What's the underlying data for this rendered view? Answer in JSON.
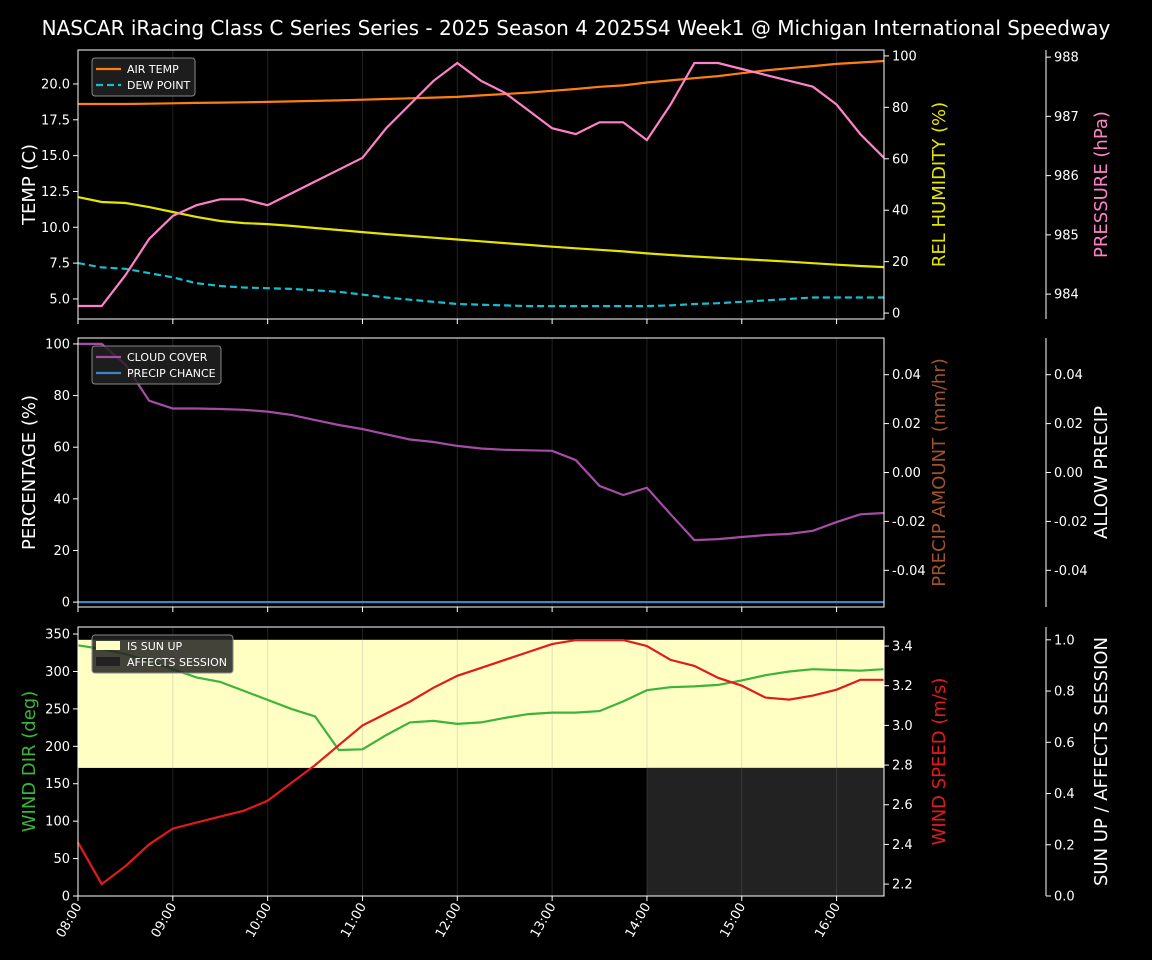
{
  "title": "NASCAR iRacing Class C Series Series - 2025 Season 4 2025S4 Week1 @ Michigan International Speedway",
  "chart_data": [
    {
      "type": "line",
      "panel": "top",
      "x": [
        "08:00",
        "08:15",
        "08:30",
        "08:45",
        "09:00",
        "09:15",
        "09:30",
        "09:45",
        "10:00",
        "10:15",
        "10:30",
        "10:45",
        "11:00",
        "11:15",
        "11:30",
        "11:45",
        "12:00",
        "12:15",
        "12:30",
        "12:45",
        "13:00",
        "13:15",
        "13:30",
        "13:45",
        "14:00",
        "14:15",
        "14:30",
        "14:45",
        "15:00",
        "15:15",
        "15:30",
        "15:45",
        "16:00",
        "16:15",
        "16:30"
      ],
      "xticks": [
        "08:00",
        "09:00",
        "10:00",
        "11:00",
        "12:00",
        "13:00",
        "14:00",
        "15:00",
        "16:00"
      ],
      "ylabel": "TEMP (C)",
      "ylim": [
        3.6,
        22.37
      ],
      "yticks": [
        "5.0",
        "7.5",
        "10.0",
        "12.5",
        "15.0",
        "17.5",
        "20.0"
      ],
      "y2label": "REL HUMIDITY (%)",
      "y2lim": [
        -2.3,
        102.3
      ],
      "y2ticks": [
        "0",
        "20",
        "40",
        "60",
        "80",
        "100"
      ],
      "y3label": "PRESSURE (hPa)",
      "y3lim": [
        983.58,
        988.12
      ],
      "y3ticks": [
        "984",
        "985",
        "986",
        "987",
        "988"
      ],
      "legend_position": "upper-left",
      "series": [
        {
          "name": "AIR TEMP",
          "axis": "y",
          "color": "#ff7f0e",
          "style": "solid",
          "values": [
            18.6,
            18.6,
            18.6,
            18.62,
            18.65,
            18.68,
            18.7,
            18.72,
            18.75,
            18.78,
            18.82,
            18.85,
            18.9,
            18.95,
            19.0,
            19.05,
            19.1,
            19.2,
            19.3,
            19.4,
            19.52,
            19.65,
            19.8,
            19.9,
            20.1,
            20.25,
            20.4,
            20.55,
            20.75,
            20.95,
            21.1,
            21.25,
            21.4,
            21.5,
            21.6
          ]
        },
        {
          "name": "DEW POINT",
          "axis": "y",
          "color": "#17becf",
          "style": "dashed",
          "values": [
            7.5,
            7.2,
            7.1,
            6.8,
            6.5,
            6.1,
            5.9,
            5.8,
            5.75,
            5.7,
            5.6,
            5.5,
            5.3,
            5.1,
            4.95,
            4.8,
            4.65,
            4.6,
            4.55,
            4.5,
            4.5,
            4.5,
            4.5,
            4.5,
            4.5,
            4.55,
            4.65,
            4.7,
            4.8,
            4.9,
            5.0,
            5.1,
            5.1,
            5.1,
            5.1
          ]
        },
        {
          "axis": "y2",
          "color": "#e5e500",
          "style": "solid",
          "values": [
            45.1,
            43.2,
            42.8,
            41.2,
            39.3,
            37.4,
            35.8,
            35.0,
            34.6,
            33.9,
            33.1,
            32.3,
            31.5,
            30.7,
            30.0,
            29.3,
            28.6,
            27.9,
            27.2,
            26.5,
            25.8,
            25.2,
            24.6,
            24.0,
            23.2,
            22.6,
            22.0,
            21.5,
            21.0,
            20.5,
            20.0,
            19.4,
            18.8,
            18.3,
            17.9
          ]
        },
        {
          "axis": "y3",
          "color": "#ff82c8",
          "style": "solid",
          "values": [
            983.8,
            983.8,
            984.32,
            984.93,
            985.32,
            985.5,
            985.6,
            985.6,
            985.5,
            985.7,
            985.9,
            986.1,
            986.3,
            986.8,
            987.2,
            987.6,
            987.9,
            987.6,
            987.4,
            987.1,
            986.8,
            986.7,
            986.9,
            986.9,
            986.6,
            987.2,
            987.9,
            987.9,
            987.8,
            987.7,
            987.6,
            987.5,
            987.2,
            986.7,
            986.3
          ]
        }
      ]
    },
    {
      "type": "line",
      "panel": "middle",
      "ylabel": "PERCENTAGE (%)",
      "ylim": [
        -1.9,
        102.3
      ],
      "yticks": [
        "0",
        "20",
        "40",
        "60",
        "80",
        "100"
      ],
      "y2label": "PRECIP AMOUNT (mm/hr)",
      "y2lim": [
        -0.055,
        0.055
      ],
      "y2ticks": [
        "-0.04",
        "-0.02",
        "0.00",
        "0.02",
        "0.04"
      ],
      "y3label": "ALLOW PRECIP",
      "y3lim": [
        -0.055,
        0.055
      ],
      "y3ticks": [
        "-0.04",
        "-0.02",
        "0.00",
        "0.02",
        "0.04"
      ],
      "legend_position": "upper-left",
      "series": [
        {
          "name": "CLOUD COVER",
          "axis": "y",
          "color": "#a64ca6",
          "style": "solid",
          "values": [
            100,
            100,
            92,
            78,
            75,
            75,
            74.8,
            74.5,
            73.8,
            72.5,
            70.5,
            68.6,
            67,
            65,
            63,
            62,
            60.5,
            59.5,
            59,
            58.8,
            58.6,
            55,
            45,
            41.5,
            44.3,
            34,
            24,
            24.4,
            25.2,
            26,
            26.4,
            27.6,
            31,
            34,
            34.5
          ]
        },
        {
          "name": "PRECIP CHANCE",
          "axis": "y",
          "color": "#3d85c6",
          "style": "solid",
          "values": [
            0,
            0,
            0,
            0,
            0,
            0,
            0,
            0,
            0,
            0,
            0,
            0,
            0,
            0,
            0,
            0,
            0,
            0,
            0,
            0,
            0,
            0,
            0,
            0,
            0,
            0,
            0,
            0,
            0,
            0,
            0,
            0,
            0,
            0,
            0
          ]
        }
      ]
    },
    {
      "type": "line",
      "panel": "bottom",
      "ylabel": "WIND DIR (deg)",
      "ylim": [
        0,
        359.4
      ],
      "yticks": [
        "0",
        "50",
        "100",
        "150",
        "200",
        "250",
        "300",
        "350"
      ],
      "y2label": "WIND SPEED (m/s)",
      "y2lim": [
        2.14,
        3.496
      ],
      "y2ticks": [
        "2.2",
        "2.4",
        "2.6",
        "2.8",
        "3.0",
        "3.2",
        "3.4"
      ],
      "y3label": "SUN UP / AFFECTS SESSION",
      "y3lim": [
        0,
        1.05
      ],
      "y3ticks": [
        "0.0",
        "0.2",
        "0.4",
        "0.6",
        "0.8",
        "1.0"
      ],
      "legend_position": "upper-left",
      "bands": [
        {
          "name": "IS SUN UP",
          "color": "#ffffc4",
          "values": [
            1,
            1,
            1,
            1,
            1,
            1,
            1,
            1,
            1,
            1,
            1,
            1,
            1,
            1,
            1,
            1,
            1,
            1,
            1,
            1,
            1,
            1,
            1,
            1,
            1,
            1,
            1,
            1,
            1,
            1,
            1,
            1,
            1,
            1,
            1
          ]
        },
        {
          "name": "AFFECTS SESSION",
          "color": "#222222",
          "values": [
            0,
            0,
            0,
            0,
            0,
            0,
            0,
            0,
            0,
            0,
            0,
            0,
            0,
            0,
            0,
            0,
            0,
            0,
            0,
            0,
            0,
            0,
            0,
            0,
            1,
            1,
            1,
            1,
            1,
            1,
            1,
            1,
            1,
            1,
            1
          ]
        }
      ],
      "series": [
        {
          "axis": "y",
          "color": "#3cb33c",
          "style": "solid",
          "values": [
            335,
            330,
            323,
            314,
            303,
            292,
            286,
            274,
            262,
            250,
            240,
            195,
            196,
            215,
            232,
            234,
            230,
            232,
            238,
            243,
            245,
            245,
            247,
            260,
            275,
            279,
            280,
            282,
            288,
            295,
            300,
            303,
            302,
            301,
            303
          ]
        },
        {
          "axis": "y2",
          "color": "#e31a1c",
          "style": "solid",
          "values": [
            2.41,
            2.2,
            2.29,
            2.4,
            2.48,
            2.51,
            2.54,
            2.57,
            2.62,
            2.71,
            2.8,
            2.9,
            3.0,
            3.06,
            3.12,
            3.19,
            3.25,
            3.29,
            3.33,
            3.37,
            3.41,
            3.43,
            3.43,
            3.43,
            3.4,
            3.33,
            3.3,
            3.24,
            3.2,
            3.14,
            3.13,
            3.15,
            3.18,
            3.23,
            3.23
          ]
        }
      ]
    }
  ],
  "colors": {
    "y2_top": "#e5e500",
    "y3_top": "#ff82c8",
    "y2_mid": "#a0522d",
    "y1_bot": "#3cb33c",
    "y2_bot": "#e31a1c"
  }
}
